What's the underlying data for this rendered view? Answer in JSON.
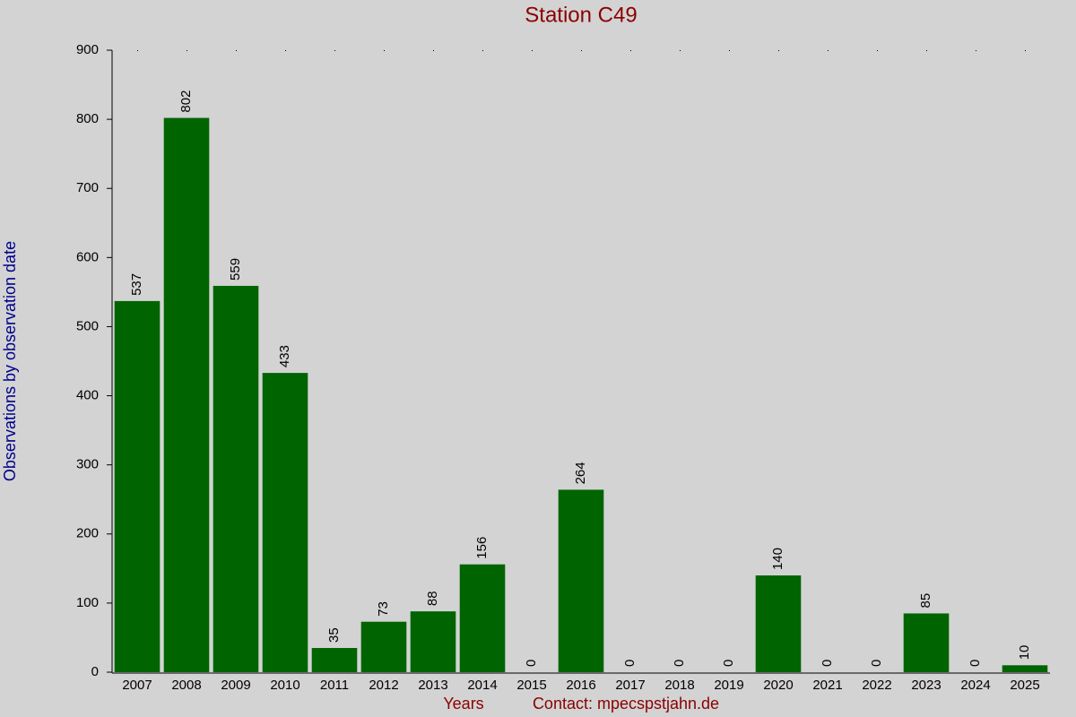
{
  "chart_data": {
    "type": "bar",
    "title": "Station C49",
    "x_label": "Years",
    "footer": "Contact: mpecspstjahn.de",
    "y_label": "Observations by observation date",
    "categories": [
      "2007",
      "2008",
      "2009",
      "2010",
      "2011",
      "2012",
      "2013",
      "2014",
      "2015",
      "2016",
      "2017",
      "2018",
      "2019",
      "2020",
      "2021",
      "2022",
      "2023",
      "2024",
      "2025"
    ],
    "values": [
      537,
      802,
      559,
      433,
      35,
      73,
      88,
      156,
      0,
      264,
      0,
      0,
      0,
      140,
      0,
      0,
      85,
      0,
      10
    ],
    "color": "#006400",
    "ylim": [
      0,
      900
    ],
    "yticks": [
      0,
      100,
      200,
      300,
      400,
      500,
      600,
      700,
      800,
      900
    ]
  }
}
